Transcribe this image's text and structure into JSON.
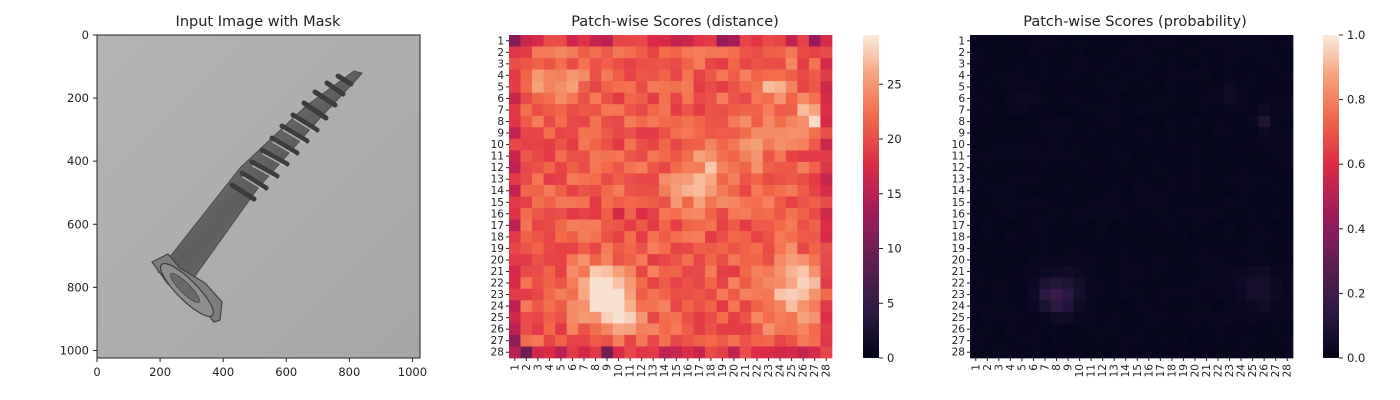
{
  "chart_data": [
    {
      "type": "image",
      "title": "Input Image with Mask",
      "xlim": [
        0,
        1024
      ],
      "ylim": [
        1024,
        0
      ],
      "x_ticks": [
        "0",
        "200",
        "400",
        "600",
        "800",
        "1000"
      ],
      "y_ticks": [
        "0",
        "200",
        "400",
        "600",
        "800",
        "1000"
      ],
      "x_tick_values": [
        0,
        200,
        400,
        600,
        800,
        1000
      ],
      "y_tick_values": [
        0,
        200,
        400,
        600,
        800,
        1000
      ],
      "image_content": "grayscale photo of a wood screw on a light gray background"
    },
    {
      "type": "heatmap",
      "title": "Patch-wise Scores (distance)",
      "rows": [
        "1",
        "2",
        "3",
        "4",
        "5",
        "6",
        "7",
        "8",
        "9",
        "10",
        "11",
        "12",
        "13",
        "14",
        "15",
        "16",
        "17",
        "18",
        "19",
        "20",
        "21",
        "22",
        "23",
        "24",
        "25",
        "26",
        "27",
        "28"
      ],
      "cols": [
        "1",
        "2",
        "3",
        "4",
        "5",
        "6",
        "7",
        "8",
        "9",
        "10",
        "11",
        "12",
        "13",
        "14",
        "15",
        "16",
        "17",
        "18",
        "19",
        "20",
        "21",
        "22",
        "23",
        "24",
        "25",
        "26",
        "27",
        "28"
      ],
      "colorbar": {
        "min": 0,
        "max": 29.5,
        "ticks": [
          "0",
          "5",
          "10",
          "15",
          "20",
          "25"
        ],
        "tick_values": [
          0,
          5,
          10,
          15,
          20,
          25
        ]
      },
      "colormap": "rocket"
    },
    {
      "type": "heatmap",
      "title": "Patch-wise Scores (probability)",
      "rows": [
        "1",
        "2",
        "3",
        "4",
        "5",
        "6",
        "7",
        "8",
        "9",
        "10",
        "11",
        "12",
        "13",
        "14",
        "15",
        "16",
        "17",
        "18",
        "19",
        "20",
        "21",
        "22",
        "23",
        "24",
        "25",
        "26",
        "27",
        "28"
      ],
      "cols": [
        "1",
        "2",
        "3",
        "4",
        "5",
        "6",
        "7",
        "8",
        "9",
        "10",
        "11",
        "12",
        "13",
        "14",
        "15",
        "16",
        "17",
        "18",
        "19",
        "20",
        "21",
        "22",
        "23",
        "24",
        "25",
        "26",
        "27",
        "28"
      ],
      "colorbar": {
        "min": 0,
        "max": 1,
        "ticks": [
          "0.0",
          "0.2",
          "0.4",
          "0.6",
          "0.8",
          "1.0"
        ],
        "tick_values": [
          0,
          0.2,
          0.4,
          0.6,
          0.8,
          1.0
        ]
      },
      "colormap": "rocket"
    }
  ]
}
